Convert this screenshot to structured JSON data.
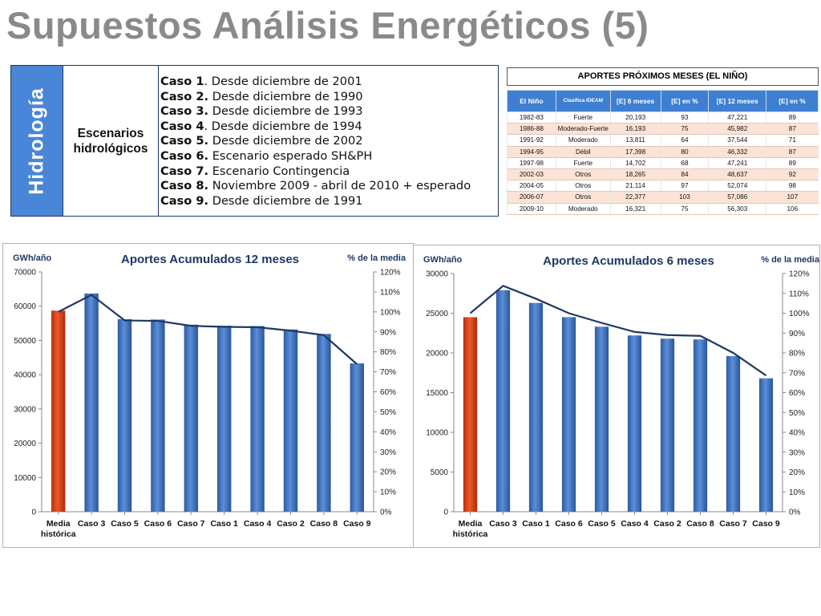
{
  "title": "Supuestos Análisis Energéticos (5)",
  "hydrology": {
    "side_label": "Hidrología",
    "scenario_label_line1": "Escenarios",
    "scenario_label_line2": "hidrológicos",
    "cases": [
      {
        "bold": "Caso 1",
        "text": ". Desde diciembre de 2001"
      },
      {
        "bold": "Caso 2.",
        "text": " Desde diciembre de 1990"
      },
      {
        "bold": "Caso 3.",
        "text": " Desde diciembre de 1993"
      },
      {
        "bold": "Caso 4",
        "text": ". Desde diciembre de 1994"
      },
      {
        "bold": "Caso 5.",
        "text": " Desde diciembre de 2002"
      },
      {
        "bold": "Caso 6.",
        "text": " Escenario esperado SH&PH"
      },
      {
        "bold": "Caso 7.",
        "text": " Escenario Contingencia"
      },
      {
        "bold": "Caso 8.",
        "text": " Noviembre 2009 - abril de 2010 + esperado"
      },
      {
        "bold": "Caso 9.",
        "text": " Desde diciembre de 1991"
      }
    ]
  },
  "nino_table": {
    "title": "APORTES PRÓXIMOS MESES (EL NIÑO)",
    "headers": [
      "El Niño",
      "Clasifica IDEAM",
      "[E] 6 meses",
      "[E] en %",
      "[E] 12 meses",
      "[E] en %"
    ],
    "rows": [
      [
        "1982-83",
        "Fuerte",
        "20,193",
        "93",
        "47,221",
        "89"
      ],
      [
        "1986-88",
        "Moderado-Fuerte",
        "16,193",
        "75",
        "45,982",
        "87"
      ],
      [
        "1991-92",
        "Moderado",
        "13,811",
        "64",
        "37,544",
        "71"
      ],
      [
        "1994-95",
        "Débil",
        "17,398",
        "80",
        "46,332",
        "87"
      ],
      [
        "1997-98",
        "Fuerte",
        "14,702",
        "68",
        "47,241",
        "89"
      ],
      [
        "2002-03",
        "Otros",
        "18,265",
        "84",
        "48,637",
        "92"
      ],
      [
        "2004-05",
        "Otros",
        "21,114",
        "97",
        "52,074",
        "98"
      ],
      [
        "2006-07",
        "Otros",
        "22,377",
        "103",
        "57,086",
        "107"
      ],
      [
        "2009-10",
        "Moderado",
        "16,321",
        "75",
        "56,303",
        "106"
      ]
    ]
  },
  "colors": {
    "bar": "#3a6fbf",
    "highlight_bar": "#d63a10",
    "line": "#1f3864",
    "table_header": "#3f7fd1"
  },
  "chart_data": [
    {
      "type": "bar",
      "title": "Aportes Acumulados 12 meses",
      "ylabel": "GWh/año",
      "y2label": "% de la media",
      "categories": [
        "Media histórica",
        "Caso 3",
        "Caso 5",
        "Caso 6",
        "Caso 7",
        "Caso 1",
        "Caso 4",
        "Caso 2",
        "Caso 8",
        "Caso 9"
      ],
      "values": [
        58700,
        63700,
        56200,
        56100,
        54600,
        54300,
        54200,
        53200,
        51900,
        43300
      ],
      "line_percent": [
        100,
        108.5,
        95.7,
        95.5,
        93,
        92.5,
        92.3,
        90.6,
        88.4,
        73.8
      ],
      "ylim": [
        0,
        70000
      ],
      "yticks": [
        0,
        10000,
        20000,
        30000,
        40000,
        50000,
        60000,
        70000
      ],
      "y2lim": [
        0,
        120
      ],
      "y2ticks": [
        "0%",
        "10%",
        "20%",
        "30%",
        "40%",
        "50%",
        "60%",
        "70%",
        "80%",
        "90%",
        "100%",
        "110%",
        "120%"
      ],
      "grid": false,
      "legend": "none"
    },
    {
      "type": "bar",
      "title": "Aportes Acumulados 6 meses",
      "ylabel": "GWh/año",
      "y2label": "% de la media",
      "categories": [
        "Media histórica",
        "Caso 3",
        "Caso 1",
        "Caso 6",
        "Caso 5",
        "Caso 4",
        "Caso 2",
        "Caso 8",
        "Caso 7",
        "Caso 9"
      ],
      "values": [
        24500,
        27900,
        26300,
        24500,
        23300,
        22200,
        21800,
        21700,
        19600,
        16800
      ],
      "line_percent": [
        100,
        113.8,
        107.3,
        100,
        95.1,
        90.6,
        89,
        88.6,
        80,
        68.6
      ],
      "ylim": [
        0,
        30000
      ],
      "yticks": [
        0,
        5000,
        10000,
        15000,
        20000,
        25000,
        30000
      ],
      "y2lim": [
        0,
        120
      ],
      "y2ticks": [
        "0%",
        "10%",
        "20%",
        "30%",
        "40%",
        "50%",
        "60%",
        "70%",
        "80%",
        "90%",
        "100%",
        "110%",
        "120%"
      ],
      "grid": false,
      "legend": "none"
    }
  ]
}
